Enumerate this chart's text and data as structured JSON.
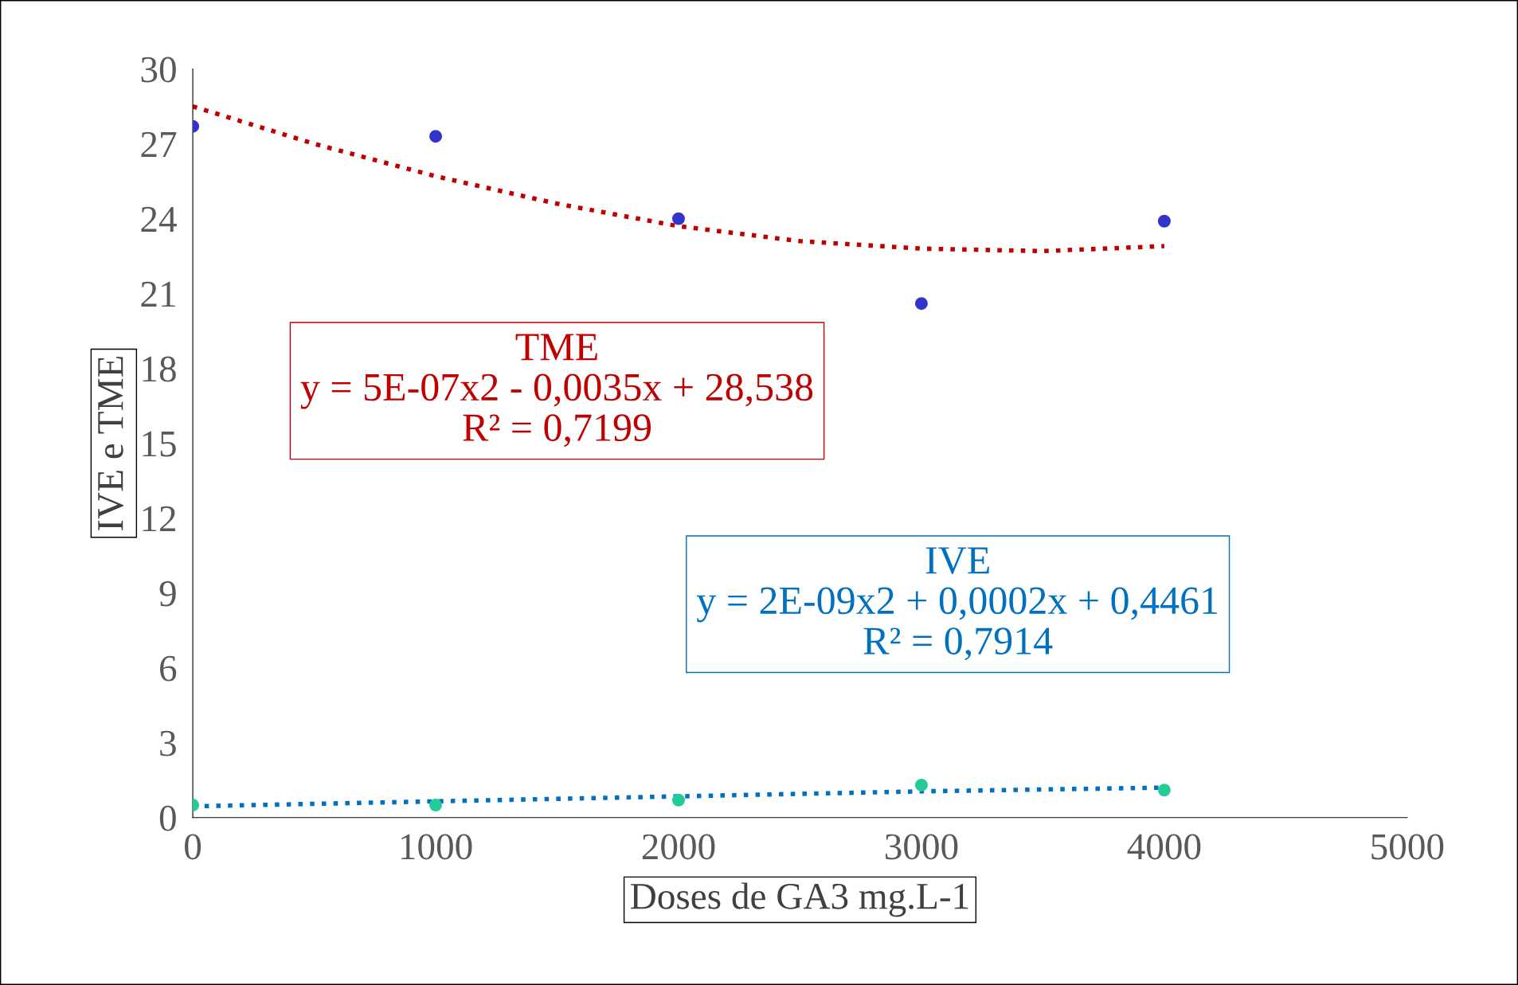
{
  "chart_data": {
    "type": "scatter",
    "xlabel": "Doses de GA3 mg.L-1",
    "ylabel": "IVE e TME",
    "xlim": [
      0,
      5000
    ],
    "xticks": [
      0,
      1000,
      2000,
      3000,
      4000,
      5000
    ],
    "ylim": [
      0,
      30
    ],
    "yticks": [
      0,
      3,
      6,
      9,
      12,
      15,
      18,
      21,
      24,
      27,
      30
    ],
    "grid": false,
    "legend": false,
    "series": [
      {
        "color": "#3333cc",
        "marker": "circle",
        "x": [
          0,
          1000,
          2000,
          3000,
          4000
        ],
        "values": [
          27.7,
          27.3,
          24.0,
          20.6,
          23.9
        ]
      },
      {
        "color": "#22cc99",
        "marker": "circle",
        "x": [
          0,
          1000,
          2000,
          3000,
          4000
        ],
        "values": [
          0.5,
          0.5,
          0.7,
          1.3,
          1.1
        ]
      },
      {
        "type": "line",
        "color": "#c00000",
        "line_style": "dotted",
        "marker": "none",
        "x": [
          0,
          500,
          1000,
          1500,
          2000,
          2500,
          3000,
          3500,
          4000
        ],
        "values": [
          28.5,
          27.0,
          25.7,
          24.6,
          23.7,
          23.1,
          22.8,
          22.7,
          22.9
        ]
      },
      {
        "type": "line",
        "color": "#0070c0",
        "line_style": "dotted",
        "marker": "none",
        "x": [
          0,
          1000,
          2000,
          3000,
          4000
        ],
        "values": [
          0.45,
          0.65,
          0.85,
          1.05,
          1.2
        ]
      }
    ],
    "annotations": [
      "TME\ny = 5E-07x2 - 0,0035x + 28,538\nR² = 0,7199",
      "IVE\ny = 2E-09x2 + 0,0002x + 0,4461\nR² = 0,7914"
    ]
  }
}
